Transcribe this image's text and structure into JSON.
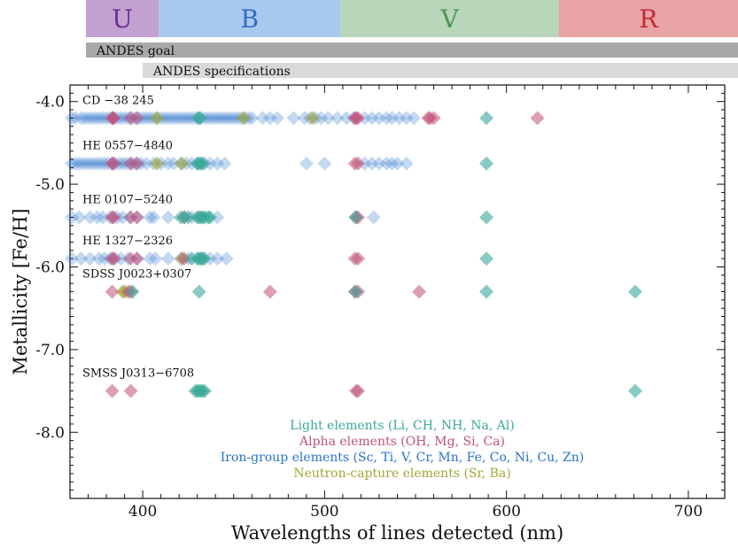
{
  "chart_data": {
    "type": "scatter",
    "xlabel": "Wavelengths of lines detected (nm)",
    "ylabel": "Metallicity [Fe/H]",
    "xlim": [
      360,
      720
    ],
    "ylim": [
      -8.8,
      -3.8
    ],
    "xticks": [
      400,
      500,
      600,
      700
    ],
    "xtick_labels": [
      "400",
      "500",
      "600",
      "700"
    ],
    "yticks": [
      -4.0,
      -5.0,
      -6.0,
      -7.0,
      -8.0
    ],
    "ytick_labels": [
      "-4.0",
      "-5.0",
      "-6.0",
      "-7.0",
      "-8.0"
    ],
    "bands": [
      {
        "label": "U",
        "x0": 360,
        "x1": 400,
        "color": "#c2a0cf",
        "text_color": "#6a2c8f"
      },
      {
        "label": "B",
        "x0": 400,
        "x1": 500,
        "color": "#a8c8ee",
        "text_color": "#2f6fc0"
      },
      {
        "label": "V",
        "x0": 500,
        "x1": 620,
        "color": "#b8d6b9",
        "text_color": "#4e9454"
      },
      {
        "label": "R",
        "x0": 620,
        "x1": 720,
        "color": "#e8a3a6",
        "text_color": "#c02a35"
      }
    ],
    "coverage_bars": [
      {
        "label": "ANDES goal",
        "x0": 360,
        "x1": 720,
        "color": "#a9a9a9"
      },
      {
        "label": "ANDES specifications",
        "x0": 400,
        "x1": 720,
        "color": "#d9d9d9"
      }
    ],
    "categories": [
      {
        "name": "Light elements (Li, CH, NH, Na, Al)",
        "color": "#3aa89a"
      },
      {
        "name": "Alpha elements (OH, Mg, Si, Ca)",
        "color": "#c0507a"
      },
      {
        "name": "Iron-group elements (Sc, Ti, V, Cr, Mn, Fe, Co, Ni, Cu, Zn)",
        "color": "#2a72c9"
      },
      {
        "name": "Neutron-capture elements (Sr, Ba)",
        "color": "#a2a535"
      }
    ],
    "stars": [
      {
        "name": "CD −38 245",
        "feh": -4.2,
        "light": [
          430.5,
          431.5,
          589.0
        ],
        "alpha": [
          383.2,
          383.8,
          384.0,
          396.8,
          393.4,
          517.3,
          518.4,
          516.7,
          557.0,
          558.0,
          560.0,
          617.0
        ],
        "iron": [
          361,
          363,
          366,
          368,
          370,
          372,
          374,
          376,
          378,
          380,
          382,
          384,
          386,
          388,
          390,
          392,
          394,
          396,
          398,
          400,
          402,
          404,
          406,
          408,
          410,
          412,
          414,
          416,
          418,
          420,
          422,
          424,
          426,
          428,
          430,
          432,
          434,
          436,
          438,
          440,
          442,
          444,
          446,
          448,
          450,
          452,
          454,
          456,
          458,
          460,
          466,
          470,
          474,
          483,
          489,
          492,
          495,
          498,
          502,
          507,
          512,
          516,
          522,
          526,
          530,
          534,
          537,
          541,
          545,
          549
        ],
        "ncap": [
          407.8,
          455.4,
          493.4
        ]
      },
      {
        "name": "HE 0557−4840",
        "feh": -4.75,
        "light": [
          430.0,
          431.0,
          432.0,
          433.0,
          589.0
        ],
        "alpha": [
          383.2,
          384.0,
          396.8,
          393.4,
          518.4,
          516.7
        ],
        "iron": [
          361,
          363,
          365,
          367,
          369,
          371,
          373,
          375,
          377,
          379,
          381,
          383,
          385,
          387,
          389,
          391,
          393,
          395,
          397,
          399,
          402,
          406,
          410,
          414,
          417,
          421,
          424,
          427,
          430,
          434,
          437,
          441,
          445,
          490,
          500,
          522,
          526,
          530,
          534,
          537,
          540,
          545
        ],
        "ncap": [
          407.8,
          421.5
        ]
      },
      {
        "name": "HE 0107−5240",
        "feh": -5.4,
        "light": [
          421.0,
          423.0,
          425.0,
          430.0,
          431.0,
          432.0,
          433.0,
          434.0,
          436.0,
          437.0,
          517.0,
          589.0
        ],
        "alpha": [
          383.2,
          384.0,
          393.4,
          396.8,
          422.7,
          517.3,
          518.4
        ],
        "iron": [
          361,
          365,
          371,
          375,
          378,
          382,
          386,
          389,
          393,
          397,
          404,
          406,
          414,
          427,
          441,
          527
        ],
        "ncap": []
      },
      {
        "name": "HE 1327−2326",
        "feh": -5.9,
        "light": [
          427.0,
          430.0,
          431.0,
          432.0,
          433.0,
          434.0,
          589.0
        ],
        "alpha": [
          383.2,
          384.0,
          393.4,
          396.8,
          422.7,
          518.4,
          516.7
        ],
        "iron": [
          361,
          366,
          371,
          376,
          379,
          382,
          385,
          388,
          392,
          397,
          404,
          407,
          414,
          421,
          425,
          432,
          437,
          441,
          446
        ],
        "ncap": [
          421.5
        ]
      },
      {
        "name": "SDSS J0023+0307",
        "feh": -6.3,
        "light": [
          394.4,
          431.0,
          517.0,
          589.0,
          670.8
        ],
        "alpha": [
          383.2,
          392.0,
          393.4,
          470.0,
          516.7,
          518.4,
          552.0
        ],
        "iron": [],
        "ncap": [
          389.0,
          390.0
        ]
      },
      {
        "name": "SMSS J0313−6708",
        "feh": -7.5,
        "light": [
          429.0,
          430.0,
          431.0,
          432.0,
          433.0,
          434.0,
          670.8
        ],
        "alpha": [
          383.2,
          393.4,
          517.3,
          518.4
        ],
        "iron": [],
        "ncap": []
      }
    ]
  }
}
